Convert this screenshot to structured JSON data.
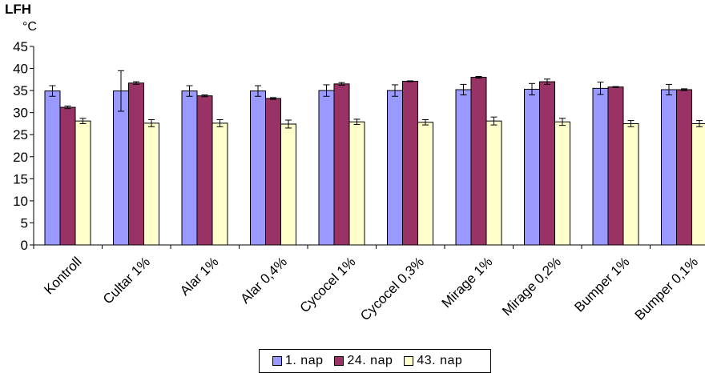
{
  "chart_data": {
    "type": "bar",
    "title": "LFH",
    "ylabel": "°C",
    "ylim": [
      0,
      45
    ],
    "yticks": [
      0,
      5,
      10,
      15,
      20,
      25,
      30,
      35,
      40,
      45
    ],
    "grid": false,
    "legend_position": "bottom",
    "categories": [
      "Kontroll",
      "Cultar 1%",
      "Alar 1%",
      "Alar 0,4%",
      "Cycocel 1%",
      "Cycocel 0,3%",
      "Mirage 1%",
      "Mirage 0,2%",
      "Bumper 1%",
      "Bumper 0,1%"
    ],
    "series": [
      {
        "name": "1. nap",
        "color": "#9999FF",
        "values": [
          34.9,
          34.9,
          34.9,
          34.9,
          35.0,
          35.0,
          35.2,
          35.3,
          35.5,
          35.2
        ],
        "errors": [
          1.2,
          4.6,
          1.2,
          1.2,
          1.3,
          1.3,
          1.2,
          1.3,
          1.4,
          1.2
        ]
      },
      {
        "name": "24. nap",
        "color": "#993366",
        "values": [
          31.2,
          36.7,
          33.8,
          33.2,
          36.5,
          37.1,
          38.0,
          37.0,
          35.8,
          35.2
        ],
        "errors": [
          0.3,
          0.3,
          0.2,
          0.2,
          0.3,
          0.1,
          0.2,
          0.6,
          0.1,
          0.2
        ]
      },
      {
        "name": "43. nap",
        "color": "#FFFFCC",
        "values": [
          28.1,
          27.6,
          27.6,
          27.4,
          27.9,
          27.8,
          28.1,
          27.9,
          27.5,
          27.5
        ],
        "errors": [
          0.6,
          0.8,
          0.8,
          0.9,
          0.6,
          0.6,
          0.9,
          0.8,
          0.7,
          0.7
        ]
      }
    ]
  }
}
